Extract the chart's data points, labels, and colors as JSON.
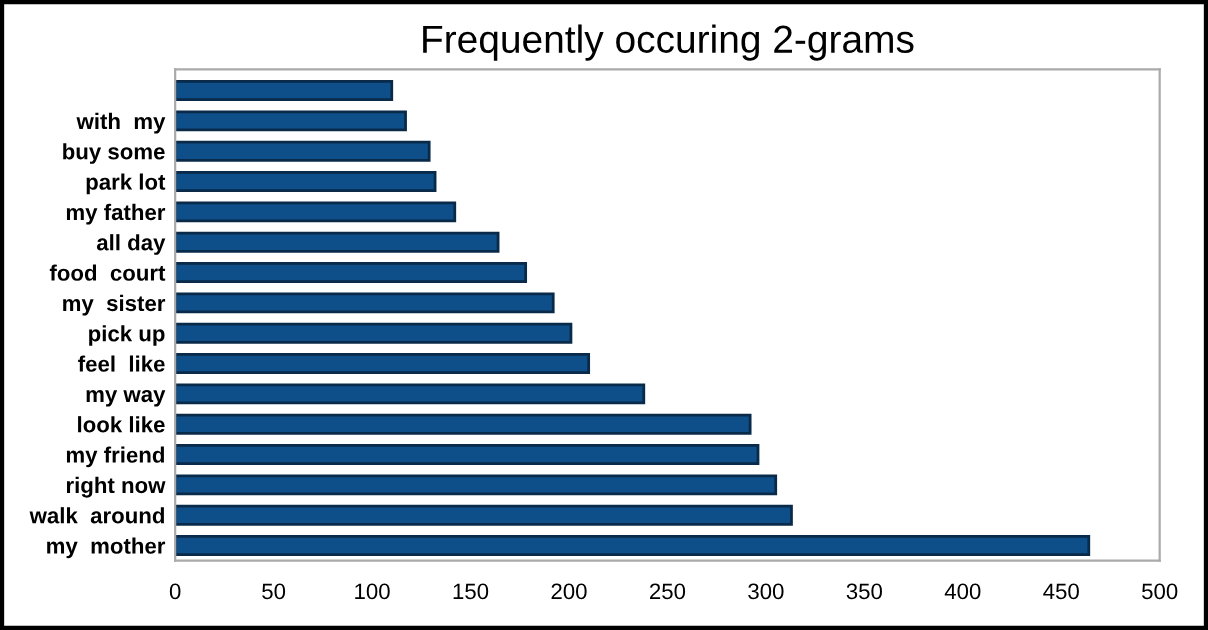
{
  "chart_data": {
    "type": "bar",
    "orientation": "horizontal",
    "title": "Frequently occuring 2-grams",
    "categories": [
      null,
      "with  my",
      "buy some",
      "park lot",
      "my father",
      "all day",
      "food  court",
      "my  sister",
      "pick up",
      "feel  like",
      "my way",
      "look like",
      "my friend",
      "right now",
      "walk  around",
      "my  mother"
    ],
    "values": [
      110,
      117,
      129,
      132,
      142,
      164,
      178,
      192,
      201,
      210,
      238,
      292,
      296,
      305,
      313,
      464
    ],
    "color": "#0e4f8a",
    "xlim": [
      0,
      500
    ],
    "xticks": [
      0,
      50,
      100,
      150,
      200,
      250,
      300,
      350,
      400,
      450,
      500
    ],
    "grid": false,
    "legend": false
  }
}
